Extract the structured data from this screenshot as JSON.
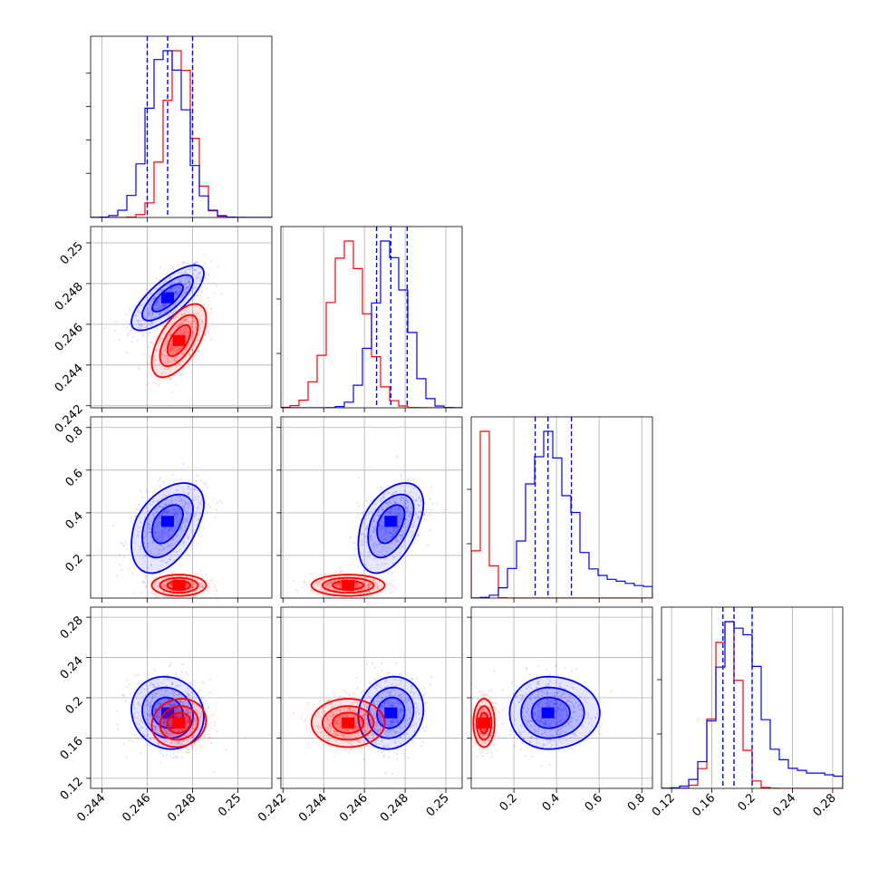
{
  "chart_data": {
    "type": "corner",
    "variables": [
      {
        "ticks": [
          0.244,
          0.246,
          0.248,
          0.25
        ],
        "range": [
          0.2435,
          0.2515
        ]
      },
      {
        "ticks": [
          0.242,
          0.244,
          0.246,
          0.248,
          0.25
        ],
        "range": [
          0.2419,
          0.2508
        ]
      },
      {
        "ticks": [
          0.2,
          0.4,
          0.6,
          0.8
        ],
        "range": [
          0.0,
          0.85
        ]
      },
      {
        "ticks": [
          0.12,
          0.16,
          0.2,
          0.24,
          0.28
        ],
        "range": [
          0.11,
          0.29
        ]
      }
    ],
    "series": [
      {
        "color": "#0000ff",
        "mean": [
          0.2469,
          0.2473,
          0.36,
          0.185
        ],
        "std": [
          0.0008,
          0.0008,
          0.09,
          0.018
        ],
        "quantiles": [
          [
            0.246,
            0.2469,
            0.248
          ],
          [
            0.2466,
            0.2473,
            0.2481
          ],
          [
            0.3,
            0.36,
            0.47
          ],
          [
            0.171,
            0.182,
            0.2
          ]
        ]
      },
      {
        "color": "#ff0000",
        "mean": [
          0.2474,
          0.2452,
          0.06,
          0.175
        ],
        "std": [
          0.0006,
          0.0009,
          0.025,
          0.012
        ],
        "quantiles": []
      }
    ],
    "correlations": {
      "blue": {
        "1-0": 0.75,
        "2-0": 0.45,
        "2-1": 0.45,
        "3-0": -0.1,
        "3-1": 0.1,
        "3-2": 0.0
      },
      "red": {
        "1-0": 0.6,
        "2-0": 0.0,
        "2-1": 0.0,
        "3-0": 0.1,
        "3-1": 0.0,
        "3-2": 0.0
      }
    },
    "grid": true,
    "legend": "none"
  }
}
